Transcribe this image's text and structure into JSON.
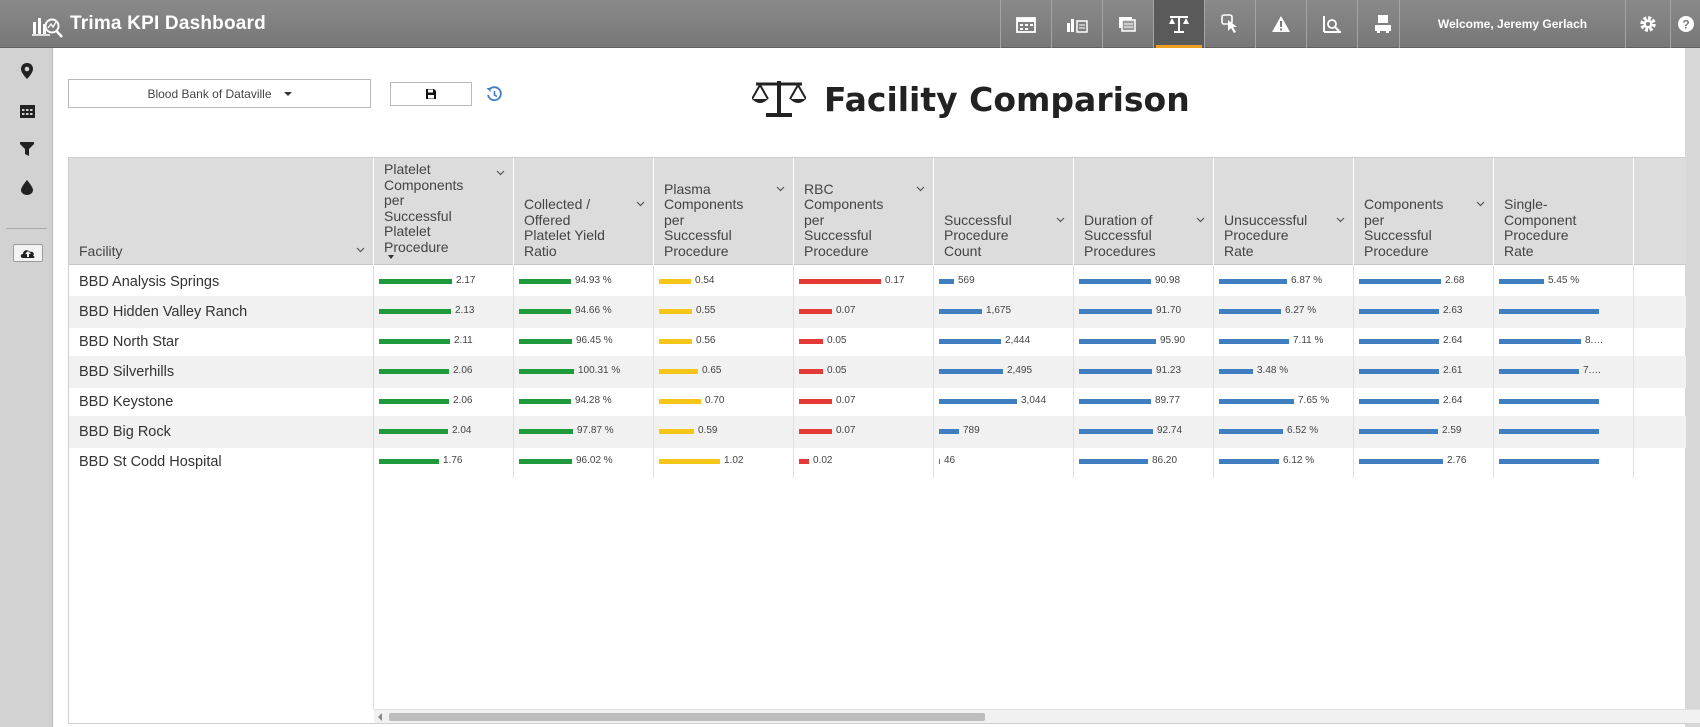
{
  "app": {
    "title": "Trima KPI Dashboard",
    "welcome": "Welcome, Jeremy Gerlach"
  },
  "nav": [
    {
      "icon": "calendar-report-icon",
      "active": false
    },
    {
      "icon": "bar-compare-icon",
      "active": false
    },
    {
      "icon": "stacked-pages-icon",
      "active": false
    },
    {
      "icon": "scales-icon",
      "active": true
    },
    {
      "icon": "pointer-icon",
      "active": false
    },
    {
      "icon": "warning-icon",
      "active": false
    },
    {
      "icon": "chart-search-icon",
      "active": false
    },
    {
      "icon": "machine-icon",
      "active": false
    }
  ],
  "sidebar": [
    "location-pin-icon",
    "calendar-icon",
    "filter-icon",
    "drop-icon",
    "cloud-upload-icon"
  ],
  "controls": {
    "facility": "Blood Bank of Dataville"
  },
  "page": {
    "title": "Facility Comparison"
  },
  "colors": {
    "green": "#1e9a3a",
    "yellow": "#f5c518",
    "red": "#e53935",
    "blue": "#3f7ec1"
  },
  "table": {
    "facility_header": "Facility",
    "columns": [
      {
        "label": "Platelet\nComponents\nper\nSuccessful\nPlatelet\nProcedure",
        "sorted": true,
        "color": "green"
      },
      {
        "label": "Collected /\nOffered\nPlatelet Yield\nRatio",
        "sorted": false,
        "color": "green"
      },
      {
        "label": "Plasma\nComponents\nper\nSuccessful\nProcedure",
        "sorted": false,
        "color": "yellow"
      },
      {
        "label": "RBC\nComponents\nper\nSuccessful\nProcedure",
        "sorted": false,
        "color": "red"
      },
      {
        "label": "Successful\nProcedure\nCount",
        "sorted": false,
        "color": "blue"
      },
      {
        "label": "Duration of\nSuccessful\nProcedures",
        "sorted": false,
        "color": "blue"
      },
      {
        "label": "Unsuccessful\nProcedure\nRate",
        "sorted": false,
        "color": "blue"
      },
      {
        "label": "Components\nper\nSuccessful\nProcedure",
        "sorted": false,
        "color": "blue"
      },
      {
        "label": "Single-\nComponent\nProcedure\nRate",
        "sorted": false,
        "color": "blue"
      }
    ],
    "rows": [
      {
        "facility": "BBD Analysis Springs",
        "values": [
          "2.17",
          "94.93 %",
          "0.54",
          "0.17",
          "569",
          "90.98",
          "6.87 %",
          "2.68",
          "5.45 %"
        ],
        "fill": [
          0.73,
          0.52,
          0.32,
          0.82,
          0.15,
          0.72,
          0.68,
          0.82,
          0.45
        ]
      },
      {
        "facility": "BBD Hidden Valley Ranch",
        "values": [
          "2.13",
          "94.66 %",
          "0.55",
          "0.07",
          "1,675",
          "91.70",
          "6.27 %",
          "2.63",
          ""
        ],
        "fill": [
          0.72,
          0.52,
          0.33,
          0.33,
          0.43,
          0.73,
          0.62,
          0.8,
          1.0
        ]
      },
      {
        "facility": "BBD North Star",
        "values": [
          "2.11",
          "96.45 %",
          "0.56",
          "0.05",
          "2,444",
          "95.90",
          "7.11 %",
          "2.64",
          "8.…"
        ],
        "fill": [
          0.71,
          0.53,
          0.33,
          0.24,
          0.62,
          0.77,
          0.7,
          0.8,
          0.82
        ]
      },
      {
        "facility": "BBD Silverhills",
        "values": [
          "2.06",
          "100.31 %",
          "0.65",
          "0.05",
          "2,495",
          "91.23",
          "3.48 %",
          "2.61",
          "7.…"
        ],
        "fill": [
          0.7,
          0.55,
          0.39,
          0.24,
          0.64,
          0.73,
          0.34,
          0.8,
          0.8
        ]
      },
      {
        "facility": "BBD Keystone",
        "values": [
          "2.06",
          "94.28 %",
          "0.70",
          "0.07",
          "3,044",
          "89.77",
          "7.65 %",
          "2.64",
          ""
        ],
        "fill": [
          0.7,
          0.52,
          0.42,
          0.33,
          0.78,
          0.72,
          0.75,
          0.8,
          1.0
        ]
      },
      {
        "facility": "BBD Big Rock",
        "values": [
          "2.04",
          "97.87 %",
          "0.59",
          "0.07",
          "789",
          "92.74",
          "6.52 %",
          "2.59",
          ""
        ],
        "fill": [
          0.69,
          0.54,
          0.35,
          0.33,
          0.2,
          0.74,
          0.64,
          0.79,
          1.0
        ]
      },
      {
        "facility": "BBD St Codd Hospital",
        "values": [
          "1.76",
          "96.02 %",
          "1.02",
          "0.02",
          "46",
          "86.20",
          "6.12 %",
          "2.76",
          ""
        ],
        "fill": [
          0.6,
          0.53,
          0.61,
          0.1,
          0.01,
          0.69,
          0.6,
          0.84,
          1.0
        ]
      }
    ]
  }
}
